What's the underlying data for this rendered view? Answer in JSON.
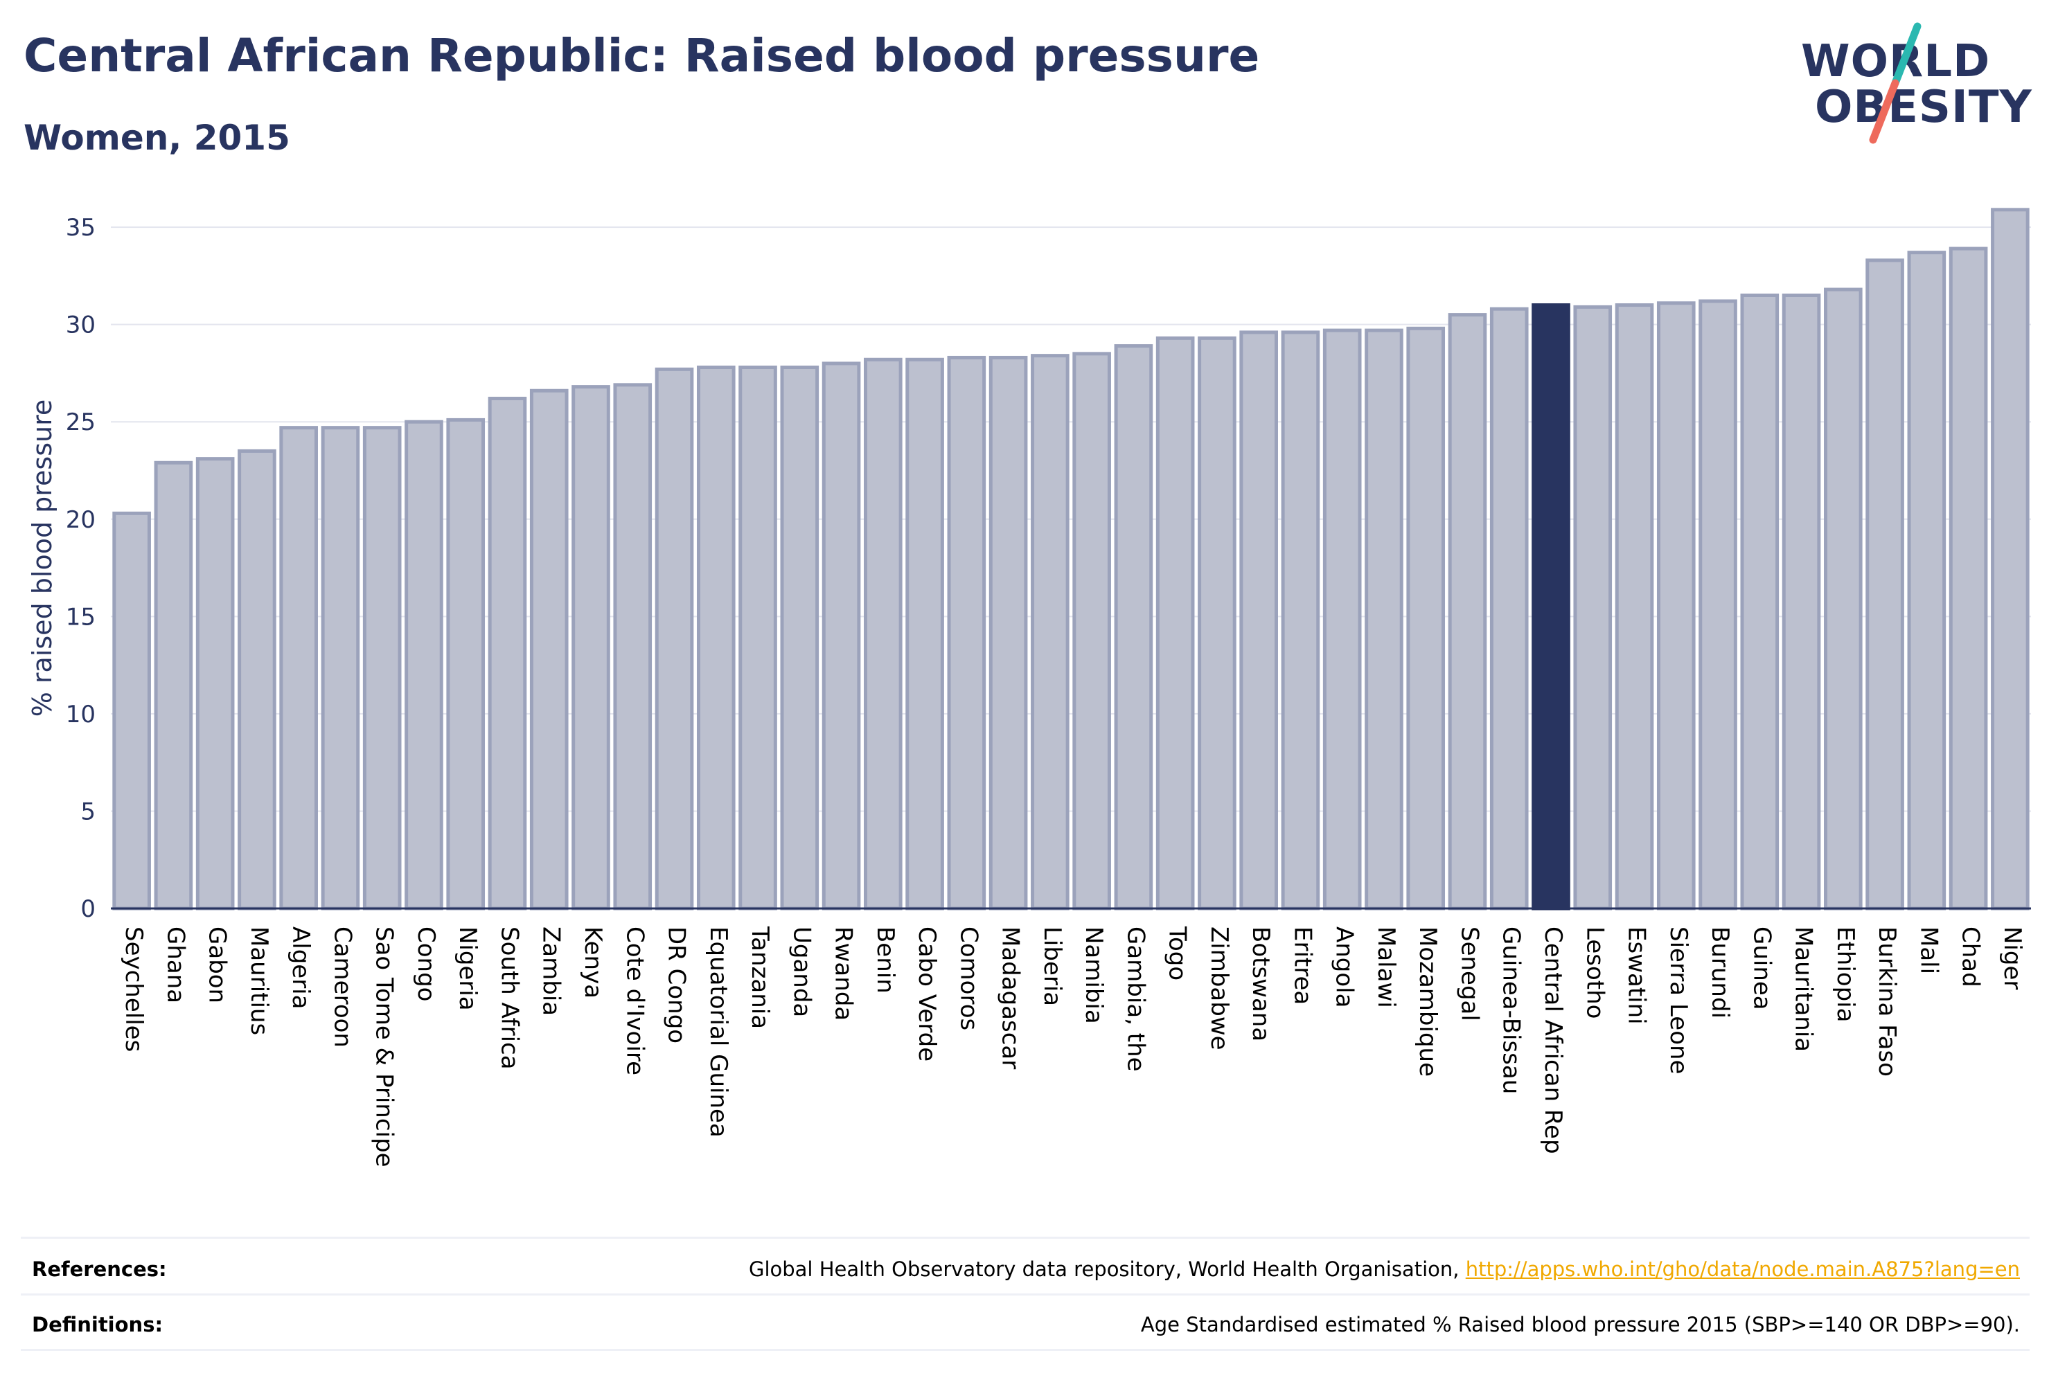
{
  "header": {
    "title": "Central African Republic: Raised blood pressure",
    "subtitle": "Women, 2015"
  },
  "logo": {
    "line1": "WORLD",
    "line2": "OBESITY",
    "name": "world-obesity-logo"
  },
  "colors": {
    "bar": "#bcc0cf",
    "bar_edge": "#9ba2bb",
    "highlight": "#283460",
    "text": "#283460",
    "grid": "#e3e5ee",
    "link": "#f0a800"
  },
  "chart_data": {
    "type": "bar",
    "ylabel": "% raised blood pressure",
    "xlabel": "",
    "ylim": [
      0,
      36
    ],
    "yticks": [
      0,
      5,
      10,
      15,
      20,
      25,
      30,
      35
    ],
    "grid": true,
    "highlight": "Central African Rep",
    "categories": [
      "Seychelles",
      "Ghana",
      "Gabon",
      "Mauritius",
      "Algeria",
      "Cameroon",
      "Sao Tome & Principe",
      "Congo",
      "Nigeria",
      "South Africa",
      "Zambia",
      "Kenya",
      "Cote d'Ivoire",
      "DR Congo",
      "Equatorial Guinea",
      "Tanzania",
      "Uganda",
      "Rwanda",
      "Benin",
      "Cabo Verde",
      "Comoros",
      "Madagascar",
      "Liberia",
      "Namibia",
      "Gambia, the",
      "Togo",
      "Zimbabwe",
      "Botswana",
      "Eritrea",
      "Angola",
      "Malawi",
      "Mozambique",
      "Senegal",
      "Guinea-Bissau",
      "Central African Rep",
      "Lesotho",
      "Eswatini",
      "Sierra Leone",
      "Burundi",
      "Guinea",
      "Mauritania",
      "Ethiopia",
      "Burkina Faso",
      "Mali",
      "Chad",
      "Niger"
    ],
    "values": [
      20.3,
      22.9,
      23.1,
      23.5,
      24.7,
      24.7,
      24.7,
      25.0,
      25.1,
      26.2,
      26.6,
      26.8,
      26.9,
      27.7,
      27.8,
      27.8,
      27.8,
      28.0,
      28.2,
      28.2,
      28.3,
      28.3,
      28.4,
      28.5,
      28.9,
      29.3,
      29.3,
      29.6,
      29.6,
      29.7,
      29.7,
      29.8,
      30.5,
      30.8,
      31.0,
      30.9,
      31.0,
      31.1,
      31.2,
      31.5,
      31.5,
      31.8,
      33.3,
      33.7,
      33.9,
      35.9
    ]
  },
  "footer": {
    "references_label": "References:",
    "references_text": "Global Health Observatory data repository, World Health Organisation, ",
    "references_link": "http://apps.who.int/gho/data/node.main.A875?lang=en",
    "definitions_label": "Definitions:",
    "definitions_text": "Age Standardised estimated % Raised blood pressure 2015 (SBP>=140 OR DBP>=90)."
  }
}
